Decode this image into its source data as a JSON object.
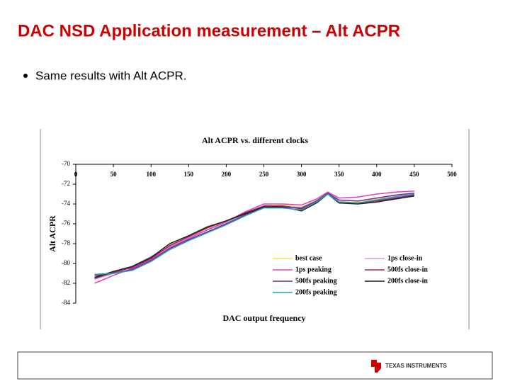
{
  "slide": {
    "title": "DAC NSD Application measurement – Alt ACPR",
    "bullet": "Same results with Alt ACPR.",
    "logo": "TEXAS INSTRUMENTS"
  },
  "chart_data": {
    "type": "line",
    "title": "Alt ACPR vs. different clocks",
    "x_label": "DAC output frequency",
    "y_label": "Alt ACPR",
    "x": [
      25,
      50,
      75,
      100,
      125,
      150,
      175,
      200,
      225,
      250,
      275,
      300,
      320,
      335,
      350,
      375,
      400,
      425,
      450
    ],
    "xlim": [
      0,
      500
    ],
    "xticks": [
      0,
      50,
      100,
      150,
      200,
      250,
      300,
      350,
      400,
      450,
      500
    ],
    "ylim": [
      -84,
      -70
    ],
    "yticks": [
      -70,
      -72,
      -74,
      -76,
      -78,
      -80,
      -82,
      -84
    ],
    "legend": "lower right",
    "series": [
      {
        "name": "best case",
        "color": "#f0e060",
        "values": [
          -81.3,
          -80.9,
          -80.4,
          -79.4,
          -78.1,
          -77.3,
          -76.5,
          -75.8,
          -74.9,
          -74.2,
          -74.1,
          -74.3,
          -73.6,
          -72.9,
          -73.7,
          -73.8,
          -73.5,
          -73.2,
          -72.9
        ]
      },
      {
        "name": "1ps close-in",
        "color": "#c8a0d8",
        "values": [
          -81.6,
          -81.0,
          -80.3,
          -79.3,
          -78.3,
          -77.4,
          -76.6,
          -75.9,
          -75.0,
          -74.2,
          -74.2,
          -74.4,
          -73.7,
          -72.9,
          -73.8,
          -73.9,
          -73.6,
          -73.2,
          -73.0
        ]
      },
      {
        "name": "1ps peaking",
        "color": "#e040c0",
        "values": [
          -82.0,
          -81.2,
          -80.5,
          -79.6,
          -78.4,
          -77.5,
          -76.6,
          -75.8,
          -74.8,
          -74.0,
          -74.0,
          -74.1,
          -73.5,
          -72.8,
          -73.4,
          -73.3,
          -73.0,
          -72.8,
          -72.7
        ]
      },
      {
        "name": "500fs close-in",
        "color": "#a02060",
        "values": [
          -81.5,
          -80.9,
          -80.4,
          -79.5,
          -78.2,
          -77.3,
          -76.4,
          -75.7,
          -74.9,
          -74.2,
          -74.2,
          -74.5,
          -73.8,
          -72.9,
          -73.8,
          -73.9,
          -73.7,
          -73.4,
          -73.1
        ]
      },
      {
        "name": "500fs peaking",
        "color": "#7030a0",
        "values": [
          -81.2,
          -81.0,
          -80.6,
          -79.7,
          -78.5,
          -77.6,
          -76.8,
          -76.0,
          -75.1,
          -74.3,
          -74.3,
          -74.4,
          -73.7,
          -72.9,
          -73.6,
          -73.7,
          -73.4,
          -73.1,
          -72.9
        ]
      },
      {
        "name": "200fs close-in",
        "color": "#202020",
        "values": [
          -81.4,
          -80.8,
          -80.3,
          -79.4,
          -78.0,
          -77.2,
          -76.3,
          -75.7,
          -75.0,
          -74.3,
          -74.3,
          -74.7,
          -73.9,
          -73.0,
          -73.9,
          -74.0,
          -73.8,
          -73.5,
          -73.2
        ]
      },
      {
        "name": "200fs peaking",
        "color": "#20a0b0",
        "values": [
          -81.1,
          -81.0,
          -80.7,
          -79.8,
          -78.6,
          -77.7,
          -76.9,
          -76.1,
          -75.2,
          -74.4,
          -74.4,
          -74.6,
          -73.8,
          -73.0,
          -73.8,
          -73.9,
          -73.6,
          -73.3,
          -73.0
        ]
      }
    ]
  }
}
